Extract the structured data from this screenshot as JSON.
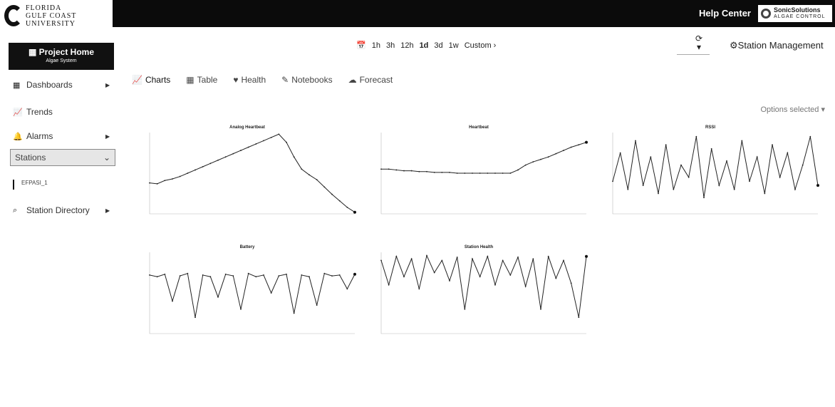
{
  "header": {
    "logo_lines": [
      "FLORIDA",
      "GULF COAST",
      "UNIVERSITY"
    ],
    "help_label": "Help Center",
    "brand_name": "SonicSolutions",
    "brand_sub": "ALGAE CONTROL"
  },
  "sidebar": {
    "project_title": "Project Home",
    "project_sub": "Algae System",
    "items": [
      {
        "label": "Dashboards",
        "icon": "grid-icon"
      },
      {
        "label": "Trends",
        "icon": "trend-icon"
      },
      {
        "label": "Alarms",
        "icon": "bell-icon"
      }
    ],
    "station_select": "Stations",
    "station_item": "EFPASI_1",
    "directory_label": "Station Directory"
  },
  "timebar": {
    "options": [
      "1h",
      "3h",
      "12h",
      "1d",
      "3d",
      "1w",
      "Custom ›"
    ],
    "selected": "1d"
  },
  "station_management": "Station Management",
  "tabs": [
    {
      "label": "Charts",
      "icon": "chart-line-icon"
    },
    {
      "label": "Table",
      "icon": "table-icon"
    },
    {
      "label": "Health",
      "icon": "heart-icon"
    },
    {
      "label": "Notebooks",
      "icon": "notebook-icon"
    },
    {
      "label": "Forecast",
      "icon": "cloud-icon"
    }
  ],
  "options_label": "Options selected",
  "chart_data": [
    {
      "type": "line",
      "title": "Analog Heartbeat",
      "values": [
        0.38,
        0.37,
        0.41,
        0.43,
        0.46,
        0.5,
        0.54,
        0.58,
        0.62,
        0.66,
        0.7,
        0.74,
        0.78,
        0.82,
        0.86,
        0.9,
        0.94,
        0.98,
        0.88,
        0.7,
        0.55,
        0.48,
        0.42,
        0.33,
        0.24,
        0.16,
        0.08,
        0.02
      ]
    },
    {
      "type": "line",
      "title": "Heartbeat",
      "values": [
        0.55,
        0.55,
        0.54,
        0.53,
        0.53,
        0.52,
        0.52,
        0.51,
        0.51,
        0.51,
        0.5,
        0.5,
        0.5,
        0.5,
        0.5,
        0.5,
        0.5,
        0.5,
        0.54,
        0.6,
        0.64,
        0.67,
        0.7,
        0.74,
        0.78,
        0.82,
        0.85,
        0.88
      ]
    },
    {
      "type": "line",
      "title": "RSSI",
      "values": [
        0.4,
        0.75,
        0.3,
        0.9,
        0.35,
        0.7,
        0.25,
        0.85,
        0.3,
        0.6,
        0.45,
        0.95,
        0.2,
        0.8,
        0.35,
        0.65,
        0.3,
        0.9,
        0.4,
        0.7,
        0.25,
        0.85,
        0.45,
        0.75,
        0.3,
        0.6,
        0.95,
        0.35
      ]
    },
    {
      "type": "line",
      "title": "Battery",
      "values": [
        0.72,
        0.7,
        0.73,
        0.4,
        0.71,
        0.74,
        0.2,
        0.72,
        0.7,
        0.45,
        0.73,
        0.71,
        0.3,
        0.74,
        0.7,
        0.72,
        0.5,
        0.71,
        0.73,
        0.25,
        0.72,
        0.7,
        0.35,
        0.74,
        0.71,
        0.72,
        0.55,
        0.73
      ]
    },
    {
      "type": "line",
      "title": "Station Health",
      "values": [
        0.9,
        0.6,
        0.95,
        0.7,
        0.92,
        0.55,
        0.96,
        0.75,
        0.9,
        0.65,
        0.94,
        0.3,
        0.92,
        0.7,
        0.95,
        0.6,
        0.9,
        0.72,
        0.94,
        0.58,
        0.92,
        0.3,
        0.95,
        0.68,
        0.9,
        0.62,
        0.2,
        0.95
      ]
    }
  ]
}
